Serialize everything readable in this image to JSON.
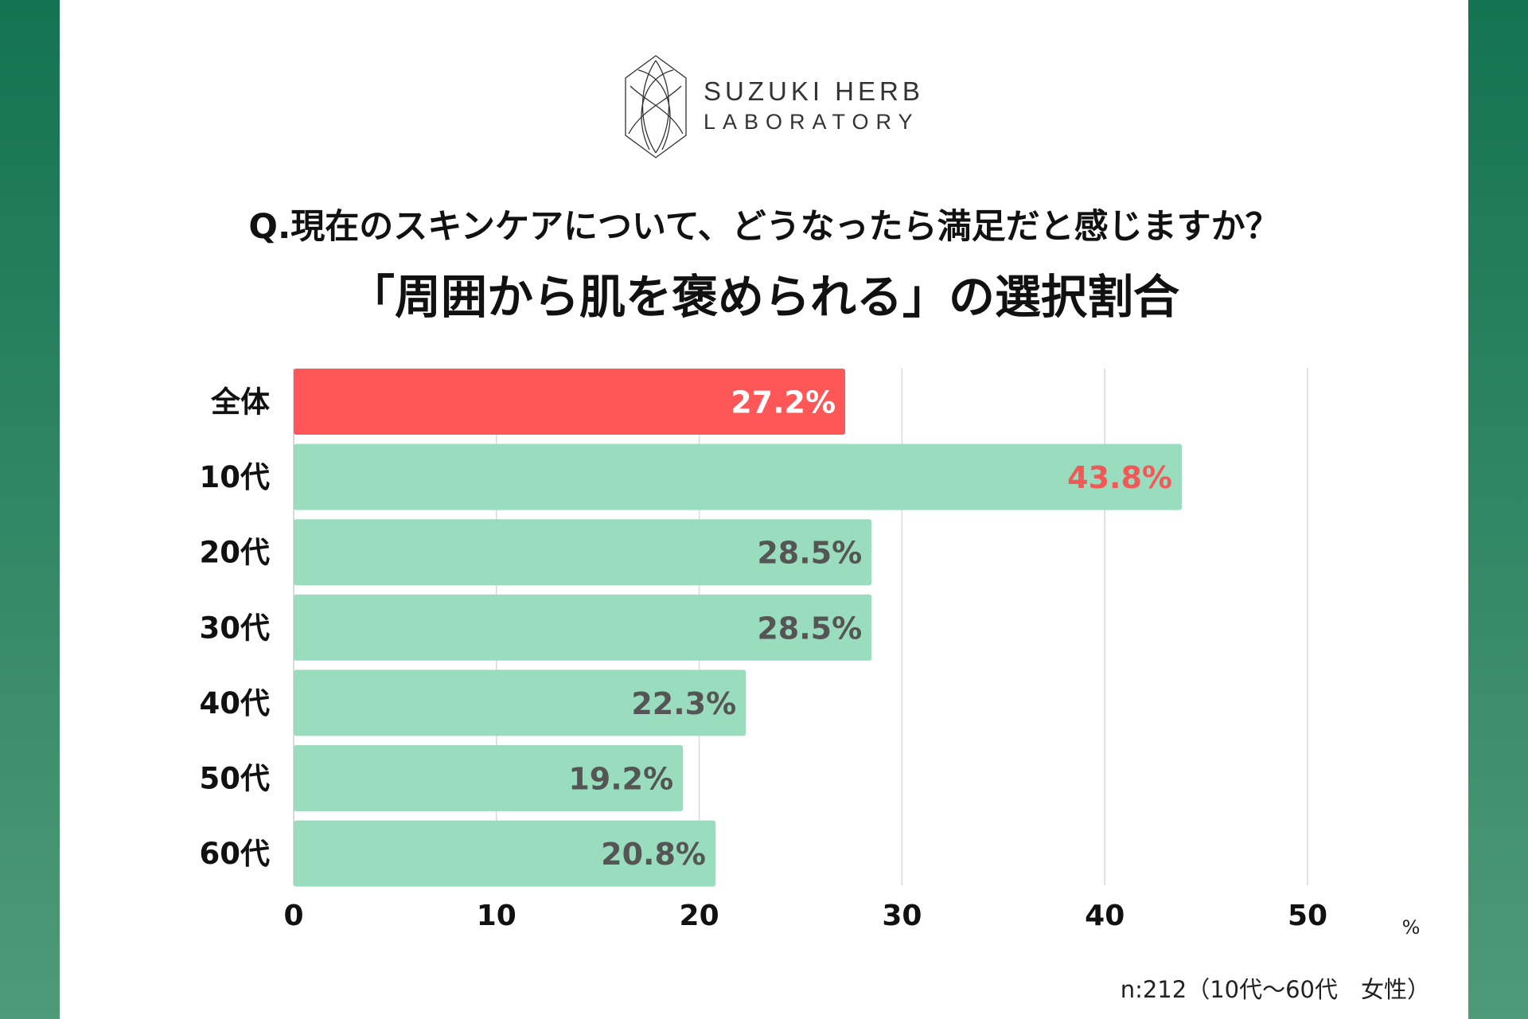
{
  "logo": {
    "line1": "SUZUKI HERB",
    "line2": "LABORATORY"
  },
  "title": "Q.現在のスキンケアについて、どうなったら満足だと感じますか？",
  "subtitle": "「周囲から肌を褒められる」の選択割合",
  "note": "n:212（10代〜60代　女性）",
  "colors": {
    "highlight": "#ff5757",
    "bar": "#99dcbe",
    "label": "#555555",
    "label_highlight": "#f25858",
    "band": "#137352"
  },
  "chart_data": {
    "type": "bar",
    "orientation": "horizontal",
    "categories": [
      "全体",
      "10代",
      "20代",
      "30代",
      "40代",
      "50代",
      "60代"
    ],
    "values": [
      27.2,
      43.8,
      28.5,
      28.5,
      22.3,
      19.2,
      20.8
    ],
    "value_labels": [
      "27.2%",
      "43.8%",
      "28.5%",
      "28.5%",
      "22.3%",
      "19.2%",
      "20.8%"
    ],
    "xlim": [
      0,
      50
    ],
    "xticks": [
      "0",
      "10",
      "20",
      "30",
      "40",
      "50"
    ],
    "xlabel": "%",
    "grid": true
  }
}
